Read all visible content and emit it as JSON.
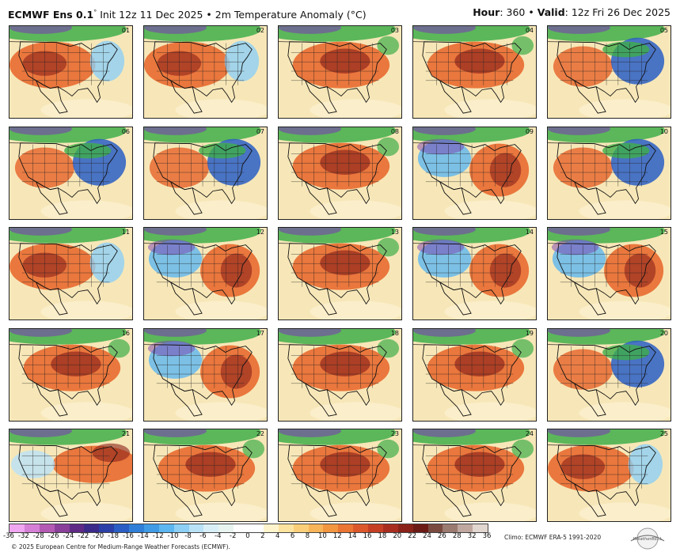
{
  "header": {
    "model": "ECMWF Ens 0.1",
    "degree": "°",
    "init": "Init 12z 11 Dec 2025",
    "bullet": "•",
    "field": "2m Temperature Anomaly (°C)",
    "hour_label": "Hour",
    "hour_value": ": 360",
    "valid_label": "Valid",
    "valid_value": ": 12z Fri 26 Dec 2025"
  },
  "panels": [
    {
      "member": "01",
      "pattern": "warm-west"
    },
    {
      "member": "06",
      "pattern": "cold-east"
    },
    {
      "member": "11",
      "pattern": "warm-west"
    },
    {
      "member": "16",
      "pattern": "warm-central"
    },
    {
      "member": "21",
      "pattern": "warm-northeast"
    },
    {
      "member": "02",
      "pattern": "warm-west"
    },
    {
      "member": "07",
      "pattern": "cold-east"
    },
    {
      "member": "12",
      "pattern": "warm-east-cold-west"
    },
    {
      "member": "17",
      "pattern": "warm-east-cold-west"
    },
    {
      "member": "22",
      "pattern": "warm-central"
    },
    {
      "member": "03",
      "pattern": "warm-central"
    },
    {
      "member": "08",
      "pattern": "warm-central"
    },
    {
      "member": "13",
      "pattern": "warm-central"
    },
    {
      "member": "18",
      "pattern": "warm-central"
    },
    {
      "member": "23",
      "pattern": "warm-central"
    },
    {
      "member": "04",
      "pattern": "warm-central"
    },
    {
      "member": "09",
      "pattern": "warm-east-cold-west"
    },
    {
      "member": "14",
      "pattern": "warm-east-cold-west"
    },
    {
      "member": "19",
      "pattern": "warm-central"
    },
    {
      "member": "24",
      "pattern": "warm-central"
    },
    {
      "member": "05",
      "pattern": "cold-east"
    },
    {
      "member": "10",
      "pattern": "cold-east"
    },
    {
      "member": "15",
      "pattern": "warm-east-cold-west"
    },
    {
      "member": "20",
      "pattern": "cold-east"
    },
    {
      "member": "25",
      "pattern": "warm-west"
    }
  ],
  "colorbar": {
    "tick_labels": [
      "-36",
      "-32",
      "-28",
      "-26",
      "-24",
      "-22",
      "-20",
      "-18",
      "-16",
      "-14",
      "-12",
      "-10",
      "-8",
      "-6",
      "-4",
      "-2",
      "0",
      "2",
      "4",
      "6",
      "8",
      "10",
      "12",
      "14",
      "16",
      "18",
      "20",
      "22",
      "24",
      "26",
      "28",
      "32",
      "36"
    ],
    "colors": [
      "#f0a6f0",
      "#d67fd6",
      "#b45ab4",
      "#8a3f9a",
      "#5e2a86",
      "#3b2a8a",
      "#2b3fa8",
      "#2a5ec4",
      "#2f7fd8",
      "#3f9be6",
      "#5cb6f0",
      "#8dcff5",
      "#b9e2f7",
      "#d9eff8",
      "#e8f4f0",
      "#ffffff",
      "#ffffff",
      "#fff4cc",
      "#fde3a0",
      "#fbcf7a",
      "#f8b458",
      "#f39640",
      "#eb7533",
      "#dc582b",
      "#c63f24",
      "#a92d1f",
      "#8a2219",
      "#6c1a16",
      "#7a4a40",
      "#9b7a70",
      "#c0a8a0",
      "#e2d6d0"
    ],
    "legend_colors": {
      "cold": "#2a5ec4",
      "green": "#3fae49",
      "purple": "#7a3fb0",
      "warm": "#e86a30",
      "hot": "#8a2219",
      "neutral": "#f7e7b8"
    }
  },
  "footer": {
    "climo": "Climo: ECMWF ERA-5 1991-2020",
    "copyright": "© 2025 European Centre for Medium-Range Weather Forecasts (ECMWF).",
    "logo_text": "WeatherBELL"
  }
}
